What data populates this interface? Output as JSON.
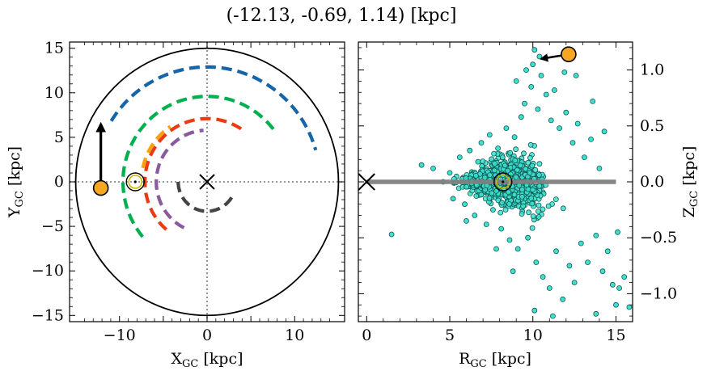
{
  "title": "(-12.13, -0.69, 1.14) [kpc]",
  "chart_data": [
    {
      "type": "scatter",
      "panel": "left",
      "xlabel": "X_GC [kpc]",
      "ylabel": "Y_GC [kpc]",
      "xlim": [
        -15.7,
        15.7
      ],
      "ylim": [
        -15.7,
        15.7
      ],
      "xticks": [
        -10,
        0,
        10
      ],
      "yticks": [
        -15,
        -10,
        -5,
        0,
        5,
        10,
        15
      ],
      "xtick_labels": [
        "−10",
        "0",
        "10"
      ],
      "ytick_labels": [
        "−15",
        "−10",
        "−5",
        "0",
        "5",
        "10",
        "15"
      ],
      "circle_radius_kpc": 15,
      "galactic_center": [
        0,
        0
      ],
      "sun": [
        -8.2,
        0
      ],
      "object": {
        "x": -12.13,
        "y": -0.69,
        "color": "#f5a623"
      },
      "velocity_arrow": {
        "from": [
          -12.13,
          -0.69
        ],
        "to": [
          -12.13,
          6.5
        ]
      },
      "arms": [
        {
          "color": "#1565a8",
          "r": 12.9,
          "start_deg": 148,
          "end_deg": 16
        },
        {
          "color": "#00b050",
          "r": 9.6,
          "start_deg": 220,
          "end_deg": 36
        },
        {
          "color": "#f5a10a",
          "r": 7.5,
          "start_deg": 168,
          "end_deg": 124
        },
        {
          "color": "#ee3a10",
          "r": 7.1,
          "start_deg": 229,
          "end_deg": 52
        },
        {
          "color": "#8a5a9e",
          "r": 5.8,
          "start_deg": 243,
          "end_deg": 94
        },
        {
          "color": "#444444",
          "r": 3.3,
          "start_deg": 180,
          "end_deg": 328
        }
      ]
    },
    {
      "type": "scatter",
      "panel": "right",
      "xlabel": "R_GC [kpc]",
      "ylabel": "Z_GC [kpc]",
      "xlim": [
        -0.5,
        16
      ],
      "ylim": [
        -1.25,
        1.25
      ],
      "xticks": [
        0,
        5,
        10,
        15
      ],
      "yticks": [
        -1.0,
        -0.5,
        0.0,
        0.5,
        1.0
      ],
      "xtick_labels": [
        "0",
        "5",
        "10",
        "15"
      ],
      "ytick_labels": [
        "−1.0",
        "−0.5",
        "0.0",
        "0.5",
        "1.0"
      ],
      "disk_line": {
        "r_from": 0,
        "r_to": 15,
        "z": 0
      },
      "sun": {
        "r": 8.2,
        "z": 0
      },
      "object": {
        "r": 12.15,
        "z": 1.14
      },
      "velocity_arrow": {
        "from": [
          12.15,
          1.14
        ],
        "to": [
          10.5,
          1.1
        ]
      },
      "point_color": "#40e0d0",
      "points": [
        [
          1.5,
          -0.47
        ],
        [
          3.3,
          0.15
        ],
        [
          4.0,
          0.12
        ],
        [
          4.6,
          0.0
        ],
        [
          5.0,
          0.08
        ],
        [
          5.2,
          -0.15
        ],
        [
          5.6,
          0.22
        ],
        [
          5.9,
          -0.2
        ],
        [
          6.2,
          0.28
        ],
        [
          6.5,
          -0.3
        ],
        [
          6.7,
          0.18
        ],
        [
          6.9,
          0.35
        ],
        [
          7.2,
          -0.38
        ],
        [
          7.4,
          0.42
        ],
        [
          7.6,
          -0.25
        ],
        [
          7.9,
          0.3
        ],
        [
          8.1,
          -0.42
        ],
        [
          8.4,
          0.48
        ],
        [
          8.6,
          -0.52
        ],
        [
          8.9,
          0.4
        ],
        [
          9.1,
          -0.6
        ],
        [
          9.3,
          0.58
        ],
        [
          9.5,
          0.7
        ],
        [
          9.7,
          -0.5
        ],
        [
          9.9,
          0.85
        ],
        [
          10.0,
          1.05
        ],
        [
          10.1,
          1.18
        ],
        [
          10.2,
          -0.72
        ],
        [
          10.3,
          0.65
        ],
        [
          10.5,
          0.95
        ],
        [
          10.6,
          -0.85
        ],
        [
          10.8,
          0.78
        ],
        [
          11.0,
          -0.95
        ],
        [
          11.1,
          0.55
        ],
        [
          11.3,
          0.82
        ],
        [
          11.4,
          -0.62
        ],
        [
          11.6,
          0.48
        ],
        [
          11.8,
          -1.05
        ],
        [
          12.0,
          0.62
        ],
        [
          12.2,
          -0.75
        ],
        [
          12.4,
          0.35
        ],
        [
          12.5,
          -0.9
        ],
        [
          12.7,
          0.52
        ],
        [
          12.9,
          -0.55
        ],
        [
          13.1,
          0.22
        ],
        [
          13.3,
          -0.72
        ],
        [
          13.5,
          0.38
        ],
        [
          13.8,
          -0.48
        ],
        [
          14.0,
          0.12
        ],
        [
          14.2,
          -0.8
        ],
        [
          14.5,
          -0.62
        ],
        [
          14.8,
          -0.92
        ],
        [
          15.0,
          -1.1
        ],
        [
          15.2,
          -0.95
        ],
        [
          15.5,
          -0.85
        ],
        [
          15.8,
          -1.12
        ],
        [
          10.1,
          -1.15
        ],
        [
          11.2,
          -1.2
        ],
        [
          13.8,
          -1.18
        ],
        [
          9.0,
          0.9
        ],
        [
          9.6,
          1.0
        ],
        [
          8.8,
          -0.8
        ],
        [
          7.8,
          -0.6
        ],
        [
          6.0,
          -0.35
        ],
        [
          12.6,
          0.95
        ],
        [
          11.9,
          0.98
        ],
        [
          13.6,
          0.72
        ],
        [
          14.3,
          0.45
        ],
        [
          15.1,
          -0.45
        ],
        [
          10.4,
          1.12
        ]
      ]
    }
  ]
}
